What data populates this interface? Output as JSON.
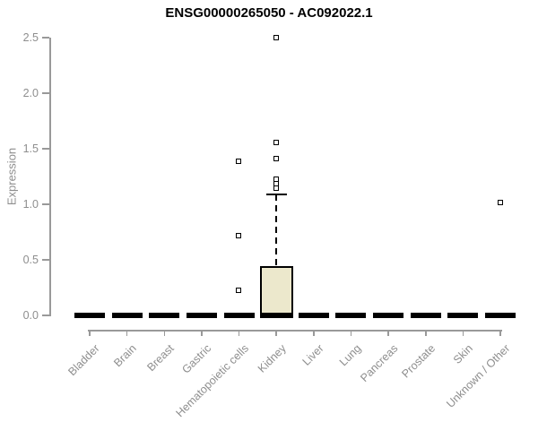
{
  "chart_data": {
    "type": "boxplot",
    "title": "ENSG00000265050 - AC092022.1",
    "ylabel": "Expression",
    "xlabel": "",
    "ylim": [
      0,
      2.5
    ],
    "y_ticks": [
      0,
      0.5,
      1,
      1.5,
      2,
      2.5
    ],
    "y_tick_labels": [
      "0.0",
      "0.5",
      "1.0",
      "1.5",
      "2.0",
      "2.5"
    ],
    "grid": false,
    "legend": null,
    "marker_style": "open-square",
    "categories": [
      "Bladder",
      "Brain",
      "Breast",
      "Gastric",
      "Hematopoietic cells",
      "Kidney",
      "Liver",
      "Lung",
      "Pancreas",
      "Prostate",
      "Skin",
      "Unknown / Other"
    ],
    "boxes": [
      {
        "category": "Bladder",
        "q1": 0,
        "median": 0,
        "q3": 0,
        "whisker_low": 0,
        "whisker_high": 0,
        "outliers": []
      },
      {
        "category": "Brain",
        "q1": 0,
        "median": 0,
        "q3": 0,
        "whisker_low": 0,
        "whisker_high": 0,
        "outliers": []
      },
      {
        "category": "Breast",
        "q1": 0,
        "median": 0,
        "q3": 0,
        "whisker_low": 0,
        "whisker_high": 0,
        "outliers": []
      },
      {
        "category": "Gastric",
        "q1": 0,
        "median": 0,
        "q3": 0,
        "whisker_low": 0,
        "whisker_high": 0,
        "outliers": []
      },
      {
        "category": "Hematopoietic cells",
        "q1": 0,
        "median": 0,
        "q3": 0,
        "whisker_low": 0,
        "whisker_high": 0,
        "outliers": [
          0.22,
          0.71,
          1.38
        ]
      },
      {
        "category": "Kidney",
        "q1": 0,
        "median": 0,
        "q3": 0.44,
        "whisker_low": 0,
        "whisker_high": 1.09,
        "outliers": [
          1.14,
          1.18,
          1.22,
          1.41,
          1.55,
          2.5
        ]
      },
      {
        "category": "Liver",
        "q1": 0,
        "median": 0,
        "q3": 0,
        "whisker_low": 0,
        "whisker_high": 0,
        "outliers": []
      },
      {
        "category": "Lung",
        "q1": 0,
        "median": 0,
        "q3": 0,
        "whisker_low": 0,
        "whisker_high": 0,
        "outliers": []
      },
      {
        "category": "Pancreas",
        "q1": 0,
        "median": 0,
        "q3": 0,
        "whisker_low": 0,
        "whisker_high": 0,
        "outliers": []
      },
      {
        "category": "Prostate",
        "q1": 0,
        "median": 0,
        "q3": 0,
        "whisker_low": 0,
        "whisker_high": 0,
        "outliers": []
      },
      {
        "category": "Skin",
        "q1": 0,
        "median": 0,
        "q3": 0,
        "whisker_low": 0,
        "whisker_high": 0,
        "outliers": []
      },
      {
        "category": "Unknown / Other",
        "q1": 0,
        "median": 0,
        "q3": 0,
        "whisker_low": 0,
        "whisker_high": 0,
        "outliers": [
          1.01
        ]
      }
    ],
    "colors": {
      "box_fill": "#ece8cc",
      "box_border": "#000000",
      "axis": "#999999",
      "tick_text": "#8e8e8e",
      "title": "#000000",
      "background": "#ffffff"
    }
  }
}
